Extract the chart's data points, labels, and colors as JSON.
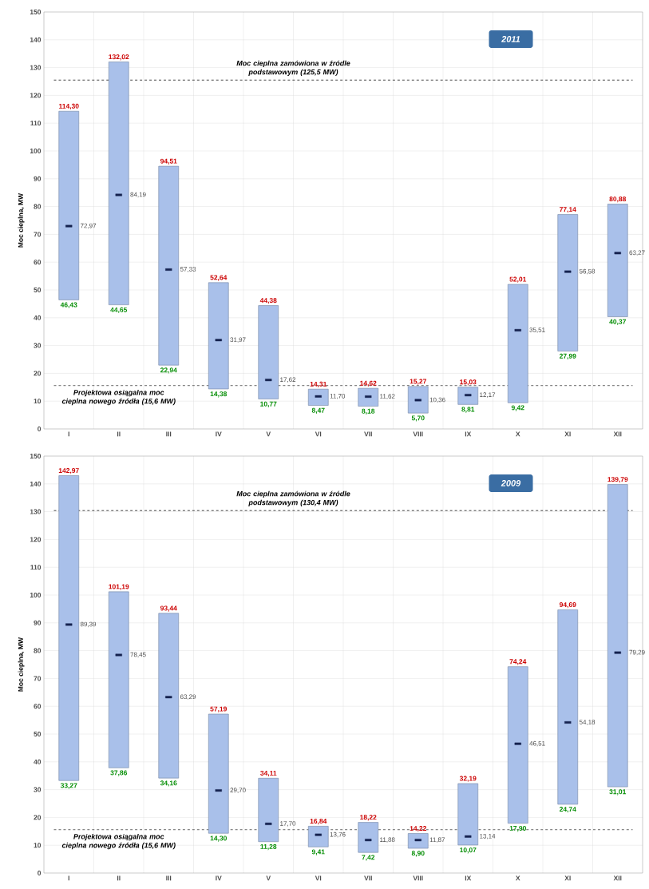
{
  "chart_data": [
    {
      "type": "bar",
      "title": "2011",
      "ylabel": "Moc cieplna, MW",
      "categories": [
        "I",
        "II",
        "III",
        "IV",
        "V",
        "VI",
        "VII",
        "VIII",
        "IX",
        "X",
        "XI",
        "XII"
      ],
      "series": [
        {
          "color": "#a9c0ea",
          "base": [
            46.43,
            44.65,
            22.94,
            14.38,
            10.77,
            8.47,
            8.18,
            5.7,
            8.81,
            9.42,
            27.99,
            40.37
          ],
          "values": [
            67.87,
            87.37,
            71.57,
            38.26,
            33.61,
            5.84,
            6.44,
            9.57,
            6.22,
            42.59,
            49.15,
            40.51
          ],
          "value_labels": [
            "114,30",
            "132,02",
            "94,51",
            "52,64",
            "44,38",
            "14,31",
            "14,62",
            "15,27",
            "15,03",
            "52,01",
            "77,14",
            "80,88"
          ]
        },
        {
          "type": "scatter",
          "color": "#15224f",
          "marker": "square",
          "values": [
            72.97,
            84.19,
            57.33,
            31.97,
            17.62,
            11.7,
            11.62,
            10.36,
            12.17,
            35.51,
            56.58,
            63.27
          ],
          "value_labels": [
            "72,97",
            "84,19",
            "57,33",
            "31,97",
            "17,62",
            "11,70",
            "11,62",
            "10,36",
            "12,17",
            "35,51",
            "56,58",
            "63,27"
          ]
        }
      ],
      "annotations": [
        {
          "text": "46,43",
          "x": "I",
          "y": 46.43
        },
        {
          "text": "44,65",
          "x": "II",
          "y": 44.65
        },
        {
          "text": "22,94",
          "x": "III",
          "y": 22.94
        },
        {
          "text": "14,38",
          "x": "IV",
          "y": 14.38
        },
        {
          "text": "10,77",
          "x": "V",
          "y": 10.77
        },
        {
          "text": "8,47",
          "x": "VI",
          "y": 8.47
        },
        {
          "text": "8,18",
          "x": "VII",
          "y": 8.18
        },
        {
          "text": "5,70",
          "x": "VIII",
          "y": 5.7
        },
        {
          "text": "8,81",
          "x": "IX",
          "y": 8.81
        },
        {
          "text": "9,42",
          "x": "X",
          "y": 9.42
        },
        {
          "text": "27,99",
          "x": "XI",
          "y": 27.99
        },
        {
          "text": "40,37",
          "x": "XII",
          "y": 40.37
        }
      ],
      "ref_lines": [
        {
          "axis": "y",
          "value": 125.5,
          "label": "Moc cieplna zamówiona w źródle podstawowym (125,5 MW)",
          "color": "#333333",
          "line_style": "dashed"
        },
        {
          "axis": "y",
          "value": 15.6,
          "label": "Projektowa osiągalna moc cieplna nowego źródła (15,6 MW)",
          "color": "#555555",
          "line_style": "dashed"
        }
      ],
      "ylim": [
        0,
        150
      ],
      "yticks": [
        0,
        10,
        20,
        30,
        40,
        50,
        60,
        70,
        80,
        90,
        100,
        110,
        120,
        130,
        140,
        150
      ],
      "grid": true
    },
    {
      "type": "bar",
      "title": "2009",
      "ylabel": "Moc cieplna, MW",
      "categories": [
        "I",
        "II",
        "III",
        "IV",
        "V",
        "VI",
        "VII",
        "VIII",
        "IX",
        "X",
        "XI",
        "XII"
      ],
      "series": [
        {
          "color": "#a9c0ea",
          "base": [
            33.27,
            37.86,
            34.16,
            14.3,
            11.28,
            9.41,
            7.42,
            8.9,
            10.07,
            17.9,
            24.74,
            31.01
          ],
          "values": [
            109.7,
            63.33,
            59.28,
            42.89,
            22.83,
            7.43,
            10.8,
            5.32,
            22.12,
            56.34,
            69.95,
            108.78
          ],
          "value_labels": [
            "142,97",
            "101,19",
            "93,44",
            "57,19",
            "34,11",
            "16,84",
            "18,22",
            "14,22",
            "32,19",
            "74,24",
            "94,69",
            "139,79"
          ]
        },
        {
          "type": "scatter",
          "color": "#15224f",
          "marker": "square",
          "values": [
            89.39,
            78.45,
            63.29,
            29.7,
            17.7,
            13.76,
            11.88,
            11.87,
            13.14,
            46.51,
            54.18,
            79.29
          ],
          "value_labels": [
            "89,39",
            "78,45",
            "63,29",
            "29,70",
            "17,70",
            "13,76",
            "11,88",
            "11,87",
            "13,14",
            "46,51",
            "54,18",
            "79,29"
          ]
        }
      ],
      "annotations": [
        {
          "text": "33,27",
          "x": "I",
          "y": 33.27
        },
        {
          "text": "37,86",
          "x": "II",
          "y": 37.86
        },
        {
          "text": "34,16",
          "x": "III",
          "y": 34.16
        },
        {
          "text": "14,30",
          "x": "IV",
          "y": 14.3
        },
        {
          "text": "11,28",
          "x": "V",
          "y": 11.28
        },
        {
          "text": "9,41",
          "x": "VI",
          "y": 9.41
        },
        {
          "text": "7,42",
          "x": "VII",
          "y": 7.42
        },
        {
          "text": "8,90",
          "x": "VIII",
          "y": 8.9
        },
        {
          "text": "10,07",
          "x": "IX",
          "y": 10.07
        },
        {
          "text": "17,90",
          "x": "X",
          "y": 17.9
        },
        {
          "text": "24,74",
          "x": "XI",
          "y": 24.74
        },
        {
          "text": "31,01",
          "x": "XII",
          "y": 31.01
        }
      ],
      "ref_lines": [
        {
          "axis": "y",
          "value": 130.4,
          "label": "Moc cieplna zamówiona w źródle podstawowym (130,4 MW)",
          "color": "#333333",
          "line_style": "dashed"
        },
        {
          "axis": "y",
          "value": 15.6,
          "label": "Projektowa osiągalna moc cieplna nowego źródła (15,6 MW)",
          "color": "#555555",
          "line_style": "dashed"
        }
      ],
      "ylim": [
        0,
        150
      ],
      "yticks": [
        0,
        10,
        20,
        30,
        40,
        50,
        60,
        70,
        80,
        90,
        100,
        110,
        120,
        130,
        140,
        150
      ],
      "grid": true
    }
  ]
}
